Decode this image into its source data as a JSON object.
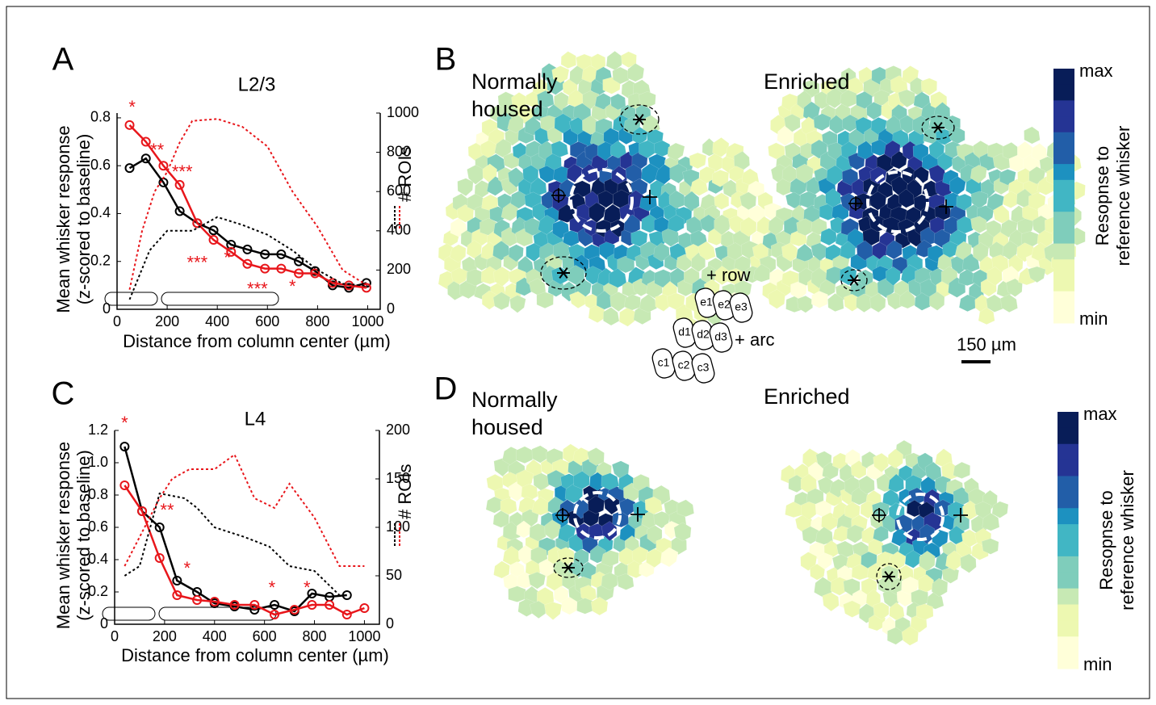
{
  "panel_labels": [
    "A",
    "B",
    "C",
    "D"
  ],
  "chart_data": [
    {
      "type": "line",
      "title": "L2/3",
      "xlabel": "Distance from column center (µm)",
      "ylabel": [
        "Mean whisker response",
        "(z-scored to baseline)"
      ],
      "y2label": "# ROIs",
      "x": [
        50,
        115,
        185,
        250,
        320,
        385,
        455,
        520,
        590,
        655,
        725,
        790,
        860,
        925,
        995
      ],
      "xlim": [
        0,
        1050
      ],
      "xticks": [
        0,
        200,
        400,
        600,
        800,
        1000
      ],
      "ylim": [
        0,
        0.82
      ],
      "yticks": [
        0,
        0.2,
        0.4,
        0.6,
        0.8
      ],
      "y2lim": [
        0,
        1000
      ],
      "y2ticks": [
        0,
        200,
        400,
        600,
        800,
        1000
      ],
      "series": [
        {
          "color": "#000000",
          "marker": "circle",
          "values": [
            0.59,
            0.63,
            0.53,
            0.41,
            0.36,
            0.33,
            0.27,
            0.25,
            0.23,
            0.23,
            0.2,
            0.16,
            0.1,
            0.09,
            0.11
          ]
        },
        {
          "color": "#e8161b",
          "marker": "circle",
          "values": [
            0.77,
            0.7,
            0.6,
            0.52,
            0.36,
            0.29,
            0.24,
            0.19,
            0.17,
            0.17,
            0.15,
            0.15,
            0.11,
            0.1,
            0.09
          ]
        },
        {
          "color": "#000000",
          "dash": true,
          "axis": "y2",
          "x": [
            50,
            130,
            200,
            300,
            400,
            500,
            600,
            700,
            800,
            900,
            1000
          ],
          "values": [
            50,
            300,
            400,
            400,
            470,
            430,
            380,
            300,
            200,
            130,
            120
          ]
        },
        {
          "color": "#e8161b",
          "dash": true,
          "axis": "y2",
          "x": [
            50,
            100,
            150,
            200,
            250,
            300,
            400,
            500,
            600,
            700,
            800,
            900,
            1000
          ],
          "values": [
            100,
            400,
            600,
            700,
            850,
            960,
            970,
            930,
            830,
            600,
            420,
            200,
            120
          ]
        }
      ],
      "annotations": [
        {
          "text": "*",
          "x": 60,
          "y": 0.84
        },
        {
          "text": "**",
          "x": 160,
          "y": 0.66
        },
        {
          "text": "***",
          "x": 260,
          "y": 0.57
        },
        {
          "text": "***",
          "x": 320,
          "y": 0.19
        },
        {
          "text": "*",
          "x": 440,
          "y": 0.21
        },
        {
          "text": "***",
          "x": 560,
          "y": 0.08
        },
        {
          "text": "*",
          "x": 700,
          "y": 0.09
        }
      ]
    },
    {
      "type": "line",
      "title": "L4",
      "xlabel": "Distance from column center (µm)",
      "ylabel": [
        "Mean whisker response",
        "(z-scored to baseline)"
      ],
      "y2label": "# ROIs",
      "x": [
        40,
        110,
        180,
        250,
        330,
        400,
        480,
        560,
        640,
        720,
        790,
        860,
        930,
        1000
      ],
      "xlim": [
        0,
        1060
      ],
      "xticks": [
        0,
        200,
        400,
        600,
        800,
        1000
      ],
      "ylim": [
        0,
        1.2
      ],
      "yticks": [
        0,
        0.2,
        0.4,
        0.6,
        0.8,
        {
          "value": 1,
          "label": "1.0"
        },
        1.2
      ],
      "y2lim": [
        0,
        200
      ],
      "y2ticks": [
        0,
        50,
        100,
        150,
        200
      ],
      "series": [
        {
          "color": "#000000",
          "marker": "circle",
          "values": [
            1.1,
            0.7,
            0.6,
            0.27,
            0.2,
            0.13,
            0.11,
            0.09,
            0.12,
            0.08,
            0.19,
            0.17,
            0.18,
            null
          ]
        },
        {
          "color": "#e8161b",
          "marker": "circle",
          "values": [
            0.86,
            0.7,
            0.41,
            0.18,
            0.15,
            0.14,
            0.12,
            0.12,
            0.06,
            0.09,
            0.12,
            0.12,
            0.06,
            0.1
          ]
        },
        {
          "color": "#000000",
          "dash": true,
          "axis": "y2",
          "x": [
            40,
            100,
            180,
            280,
            330,
            400,
            520,
            620,
            700,
            800,
            900
          ],
          "values": [
            50,
            60,
            135,
            130,
            120,
            100,
            90,
            80,
            60,
            55,
            30
          ]
        },
        {
          "color": "#e8161b",
          "dash": true,
          "axis": "y2",
          "x": [
            40,
            120,
            180,
            230,
            300,
            400,
            480,
            560,
            640,
            700,
            800,
            900,
            1000
          ],
          "values": [
            60,
            100,
            130,
            150,
            160,
            160,
            175,
            130,
            120,
            145,
            110,
            60,
            60
          ]
        }
      ],
      "annotations": [
        {
          "text": "*",
          "x": 40,
          "y": 1.24
        },
        {
          "text": "**",
          "x": 210,
          "y": 0.7
        },
        {
          "text": "*",
          "x": 290,
          "y": 0.34
        },
        {
          "text": "*",
          "x": 630,
          "y": 0.22
        },
        {
          "text": "*",
          "x": 770,
          "y": 0.22
        }
      ]
    }
  ],
  "map_titles": [
    [
      "Normally",
      "housed"
    ],
    [
      "Enriched"
    ],
    [
      "Normally",
      "housed"
    ],
    [
      "Enriched"
    ]
  ],
  "colorbar": {
    "max": "max",
    "min": "min",
    "label": [
      "Resopnse to",
      "reference whisker"
    ]
  },
  "scale_bar": "150 µm",
  "whisker_map": {
    "cells": [
      "e1",
      "e2",
      "e3",
      "d1",
      "d2",
      "d3",
      "c1",
      "c2",
      "c3"
    ],
    "row": "+ row",
    "arc": "+ arc"
  }
}
